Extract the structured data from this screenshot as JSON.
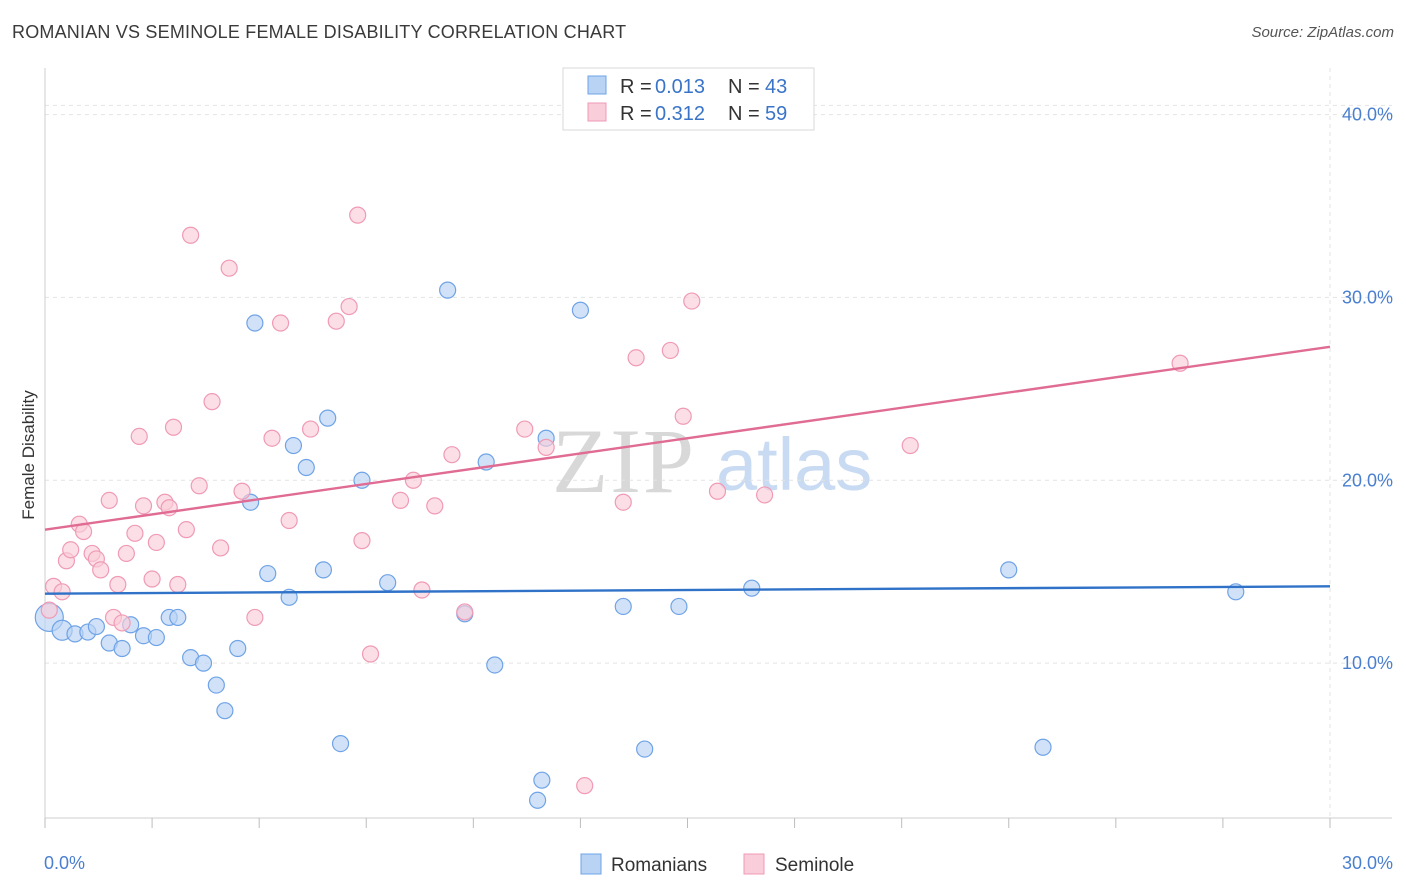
{
  "chart_data": {
    "type": "scatter",
    "title": "ROMANIAN VS SEMINOLE FEMALE DISABILITY CORRELATION CHART",
    "source": "Source: ZipAtlas.com",
    "ylabel": "Female Disability",
    "xlabel": "",
    "xlim": [
      0,
      30
    ],
    "ylim": [
      0,
      42
    ],
    "x_tick_labels": [
      "0.0%",
      "30.0%"
    ],
    "y_ticks": [
      10,
      20,
      30,
      40
    ],
    "y_tick_labels": [
      "10.0%",
      "20.0%",
      "30.0%",
      "40.0%"
    ],
    "grid": true,
    "legend_position": "top-center",
    "watermark": "ZIPatlas",
    "series": [
      {
        "name": "Romanians",
        "color": "#6fa3e6",
        "fill": "#b9d3f4",
        "line_color": "#2f72c8",
        "R": "0.013",
        "N": "43",
        "trend": [
          [
            0,
            13.8
          ],
          [
            30,
            14.2
          ]
        ],
        "points": [
          [
            0.1,
            12.5
          ],
          [
            0.4,
            11.8
          ],
          [
            0.7,
            11.6
          ],
          [
            1.0,
            11.7
          ],
          [
            1.2,
            12.0
          ],
          [
            1.5,
            11.1
          ],
          [
            1.8,
            10.8
          ],
          [
            2.0,
            12.1
          ],
          [
            2.3,
            11.5
          ],
          [
            2.6,
            11.4
          ],
          [
            2.9,
            12.5
          ],
          [
            3.1,
            12.5
          ],
          [
            3.4,
            10.3
          ],
          [
            3.7,
            10.0
          ],
          [
            4.0,
            8.8
          ],
          [
            4.2,
            7.4
          ],
          [
            4.5,
            10.8
          ],
          [
            4.8,
            18.8
          ],
          [
            4.9,
            28.6
          ],
          [
            5.2,
            14.9
          ],
          [
            5.7,
            13.6
          ],
          [
            5.8,
            21.9
          ],
          [
            6.1,
            20.7
          ],
          [
            6.5,
            15.1
          ],
          [
            6.6,
            23.4
          ],
          [
            6.9,
            5.6
          ],
          [
            7.4,
            20.0
          ],
          [
            8.0,
            14.4
          ],
          [
            9.4,
            30.4
          ],
          [
            9.8,
            12.7
          ],
          [
            10.3,
            21.0
          ],
          [
            10.5,
            9.9
          ],
          [
            11.5,
            2.5
          ],
          [
            11.6,
            3.6
          ],
          [
            11.7,
            22.3
          ],
          [
            12.5,
            29.3
          ],
          [
            13.5,
            13.1
          ],
          [
            14.0,
            5.3
          ],
          [
            14.8,
            13.1
          ],
          [
            16.5,
            14.1
          ],
          [
            22.5,
            15.1
          ],
          [
            23.3,
            5.4
          ],
          [
            27.8,
            13.9
          ]
        ]
      },
      {
        "name": "Seminole",
        "color": "#f09ab5",
        "fill": "#f9cdd9",
        "line_color": "#e06b93",
        "R": "0.312",
        "N": "59",
        "trend": [
          [
            0,
            17.3
          ],
          [
            30,
            27.3
          ]
        ],
        "points": [
          [
            0.1,
            12.9
          ],
          [
            0.2,
            14.2
          ],
          [
            0.4,
            13.9
          ],
          [
            0.5,
            15.6
          ],
          [
            0.6,
            16.2
          ],
          [
            0.8,
            17.6
          ],
          [
            0.9,
            17.2
          ],
          [
            1.1,
            16.0
          ],
          [
            1.2,
            15.7
          ],
          [
            1.3,
            15.1
          ],
          [
            1.5,
            18.9
          ],
          [
            1.6,
            12.5
          ],
          [
            1.7,
            14.3
          ],
          [
            1.8,
            12.2
          ],
          [
            1.9,
            16.0
          ],
          [
            2.1,
            17.1
          ],
          [
            2.2,
            22.4
          ],
          [
            2.3,
            18.6
          ],
          [
            2.5,
            14.6
          ],
          [
            2.6,
            16.6
          ],
          [
            2.8,
            18.8
          ],
          [
            2.9,
            18.5
          ],
          [
            3.0,
            22.9
          ],
          [
            3.1,
            14.3
          ],
          [
            3.3,
            17.3
          ],
          [
            3.4,
            33.4
          ],
          [
            3.6,
            19.7
          ],
          [
            3.9,
            24.3
          ],
          [
            4.1,
            16.3
          ],
          [
            4.3,
            31.6
          ],
          [
            4.6,
            19.4
          ],
          [
            4.9,
            12.5
          ],
          [
            5.3,
            22.3
          ],
          [
            5.5,
            28.6
          ],
          [
            5.7,
            17.8
          ],
          [
            6.2,
            22.8
          ],
          [
            6.8,
            28.7
          ],
          [
            7.1,
            29.5
          ],
          [
            7.3,
            34.5
          ],
          [
            7.4,
            16.7
          ],
          [
            7.6,
            10.5
          ],
          [
            8.3,
            18.9
          ],
          [
            8.6,
            20.0
          ],
          [
            8.8,
            14.0
          ],
          [
            9.1,
            18.6
          ],
          [
            9.5,
            21.4
          ],
          [
            9.8,
            12.8
          ],
          [
            11.2,
            22.8
          ],
          [
            11.7,
            21.8
          ],
          [
            12.6,
            3.3
          ],
          [
            13.5,
            18.8
          ],
          [
            13.8,
            26.7
          ],
          [
            14.6,
            27.1
          ],
          [
            14.9,
            23.5
          ],
          [
            15.1,
            29.8
          ],
          [
            15.7,
            19.4
          ],
          [
            16.8,
            19.2
          ],
          [
            20.2,
            21.9
          ],
          [
            26.5,
            26.4
          ]
        ]
      }
    ]
  },
  "legend": {
    "r_label": "R =",
    "n_label": "N ="
  }
}
